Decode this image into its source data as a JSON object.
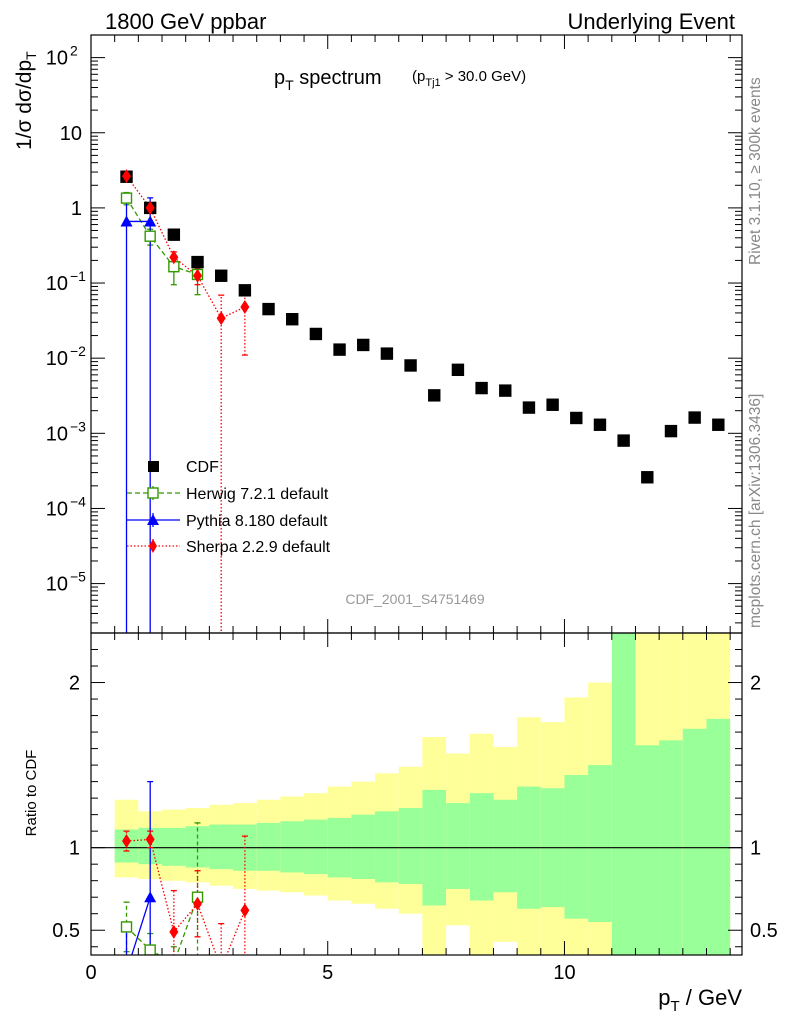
{
  "header": {
    "left": "1800 GeV ppbar",
    "right": "Underlying Event"
  },
  "side_labels": {
    "rivet": "Rivet 3.1.10, ≥ 300k events",
    "mcplots": "mcplots.cern.ch [arXiv:1306.3436]"
  },
  "analysis_id": "CDF_2001_S4751469",
  "title": {
    "main": "p",
    "main_sub": "T",
    "main_rest": " spectrum",
    "cut_open": "(p",
    "cut_sub": "Tj1",
    "cut_rest": " > 30.0 GeV)"
  },
  "axes": {
    "ylabel_prefix": "1/σ dσ/dp",
    "ylabel_sub": "T",
    "xlabel_main": "p",
    "xlabel_sub": "T",
    "xlabel_rest": " / GeV",
    "ratio_ylabel": "Ratio to CDF"
  },
  "colors": {
    "cdf": "#000000",
    "herwig": "#339900",
    "pythia": "#0000ff",
    "sherpa": "#ff0000",
    "band_inner": "#99ff99",
    "band_outer": "#ffff99"
  },
  "chart_data": {
    "type": "scatter",
    "xlim": [
      0,
      13.75
    ],
    "main_ylim": [
      2.2e-06,
      200
    ],
    "main_yscale": "log",
    "ratio_ylim": [
      0.35,
      2.3
    ],
    "x_ticks": [
      0,
      5,
      10
    ],
    "main_y_ticks": [
      {
        "value": 1e-05,
        "label": "10",
        "exp": "−5"
      },
      {
        "value": 0.0001,
        "label": "10",
        "exp": "−4"
      },
      {
        "value": 0.001,
        "label": "10",
        "exp": "−3"
      },
      {
        "value": 0.01,
        "label": "10",
        "exp": "−2"
      },
      {
        "value": 0.1,
        "label": "10",
        "exp": "−1"
      },
      {
        "value": 1,
        "label": "1",
        "exp": ""
      },
      {
        "value": 10,
        "label": "10",
        "exp": ""
      },
      {
        "value": 100,
        "label": "10",
        "exp": "2"
      }
    ],
    "ratio_y_ticks": [
      0.5,
      1,
      2
    ],
    "legend": [
      "CDF",
      "Herwig 7.2.1 default",
      "Pythia 8.180 default",
      "Sherpa 2.2.9 default"
    ],
    "cdf": {
      "x": [
        0.75,
        1.25,
        1.75,
        2.25,
        2.75,
        3.25,
        3.75,
        4.25,
        4.75,
        5.25,
        5.75,
        6.25,
        6.75,
        7.25,
        7.75,
        8.25,
        8.75,
        9.25,
        9.75,
        10.25,
        10.75,
        11.25,
        11.75,
        12.25,
        12.75,
        13.25
      ],
      "y": [
        2.6,
        1.0,
        0.44,
        0.19,
        0.125,
        0.08,
        0.045,
        0.033,
        0.021,
        0.013,
        0.015,
        0.0115,
        0.008,
        0.0032,
        0.007,
        0.004,
        0.0037,
        0.0022,
        0.0024,
        0.0016,
        0.0013,
        0.0008,
        0.00026,
        0.00107,
        0.00162,
        0.0013
      ]
    },
    "herwig": {
      "x": [
        0.75,
        1.25,
        1.75,
        2.25
      ],
      "y": [
        1.35,
        0.42,
        0.165,
        0.13
      ],
      "yerr_lo": [
        0.25,
        0.1,
        0.07,
        0.06
      ],
      "yerr_hi": [
        0.25,
        0.1,
        0.07,
        0.06
      ]
    },
    "pythia": {
      "x": [
        0.75,
        1.25
      ],
      "y": [
        0.66,
        0.66
      ],
      "yerr_lo": [
        0.66,
        0.66
      ],
      "yerr_hi": [
        0.6,
        0.7
      ]
    },
    "sherpa": {
      "x": [
        0.75,
        1.25,
        1.75,
        2.25,
        2.75,
        3.25
      ],
      "y": [
        2.65,
        1.0,
        0.22,
        0.125,
        0.034,
        0.048
      ],
      "yerr_lo": [
        0.1,
        0.05,
        0.04,
        0.03,
        0.034,
        0.037
      ],
      "yerr_hi": [
        0.1,
        0.05,
        0.04,
        0.03,
        0.035,
        0.035
      ]
    },
    "ratio": {
      "bin_edges": [
        0.5,
        1.0,
        1.5,
        2.0,
        2.5,
        3.0,
        3.5,
        4.0,
        4.5,
        5.0,
        5.5,
        6.0,
        6.5,
        7.0,
        7.5,
        8.0,
        8.5,
        9.0,
        9.5,
        10.0,
        10.5,
        11.0,
        11.5,
        12.0,
        12.5,
        13.0,
        13.5
      ],
      "inner_lo": [
        0.91,
        0.9,
        0.89,
        0.88,
        0.87,
        0.86,
        0.86,
        0.85,
        0.84,
        0.82,
        0.81,
        0.79,
        0.78,
        0.65,
        0.75,
        0.68,
        0.73,
        0.63,
        0.64,
        0.57,
        0.55,
        0.35,
        0.35,
        0.35,
        0.35,
        0.35
      ],
      "inner_hi": [
        1.11,
        1.12,
        1.12,
        1.13,
        1.14,
        1.14,
        1.15,
        1.16,
        1.17,
        1.18,
        1.2,
        1.22,
        1.24,
        1.35,
        1.27,
        1.33,
        1.29,
        1.37,
        1.36,
        1.44,
        1.5,
        2.3,
        1.62,
        1.65,
        1.72,
        1.78
      ],
      "outer_lo": [
        0.82,
        0.81,
        0.8,
        0.79,
        0.77,
        0.75,
        0.74,
        0.73,
        0.71,
        0.68,
        0.66,
        0.63,
        0.6,
        0.35,
        0.53,
        0.35,
        0.43,
        0.35,
        0.35,
        0.35,
        0.35,
        0.35,
        0.35,
        0.35,
        0.35,
        0.35
      ],
      "outer_hi": [
        1.29,
        1.22,
        1.23,
        1.24,
        1.26,
        1.27,
        1.29,
        1.31,
        1.33,
        1.37,
        1.4,
        1.45,
        1.49,
        1.67,
        1.57,
        1.69,
        1.61,
        1.79,
        1.76,
        1.91,
        2.0,
        2.3,
        2.3,
        2.3,
        2.3,
        2.3
      ],
      "herwig": {
        "x": [
          0.75,
          1.25,
          1.75,
          2.25
        ],
        "y": [
          0.52,
          0.38,
          0.3,
          0.7
        ],
        "err": [
          0.15,
          0.1,
          0.1,
          0.45
        ]
      },
      "pythia": {
        "x": [
          0.75,
          1.25
        ],
        "y": [
          0.25,
          0.7
        ],
        "err": [
          0.25,
          0.7
        ]
      },
      "sherpa": {
        "x": [
          0.75,
          1.25,
          1.75,
          2.25,
          2.75,
          3.25
        ],
        "y": [
          1.04,
          1.05,
          0.49,
          0.66,
          0.27,
          0.62
        ],
        "err": [
          0.06,
          0.05,
          0.25,
          0.2,
          0.27,
          0.45
        ]
      }
    }
  }
}
